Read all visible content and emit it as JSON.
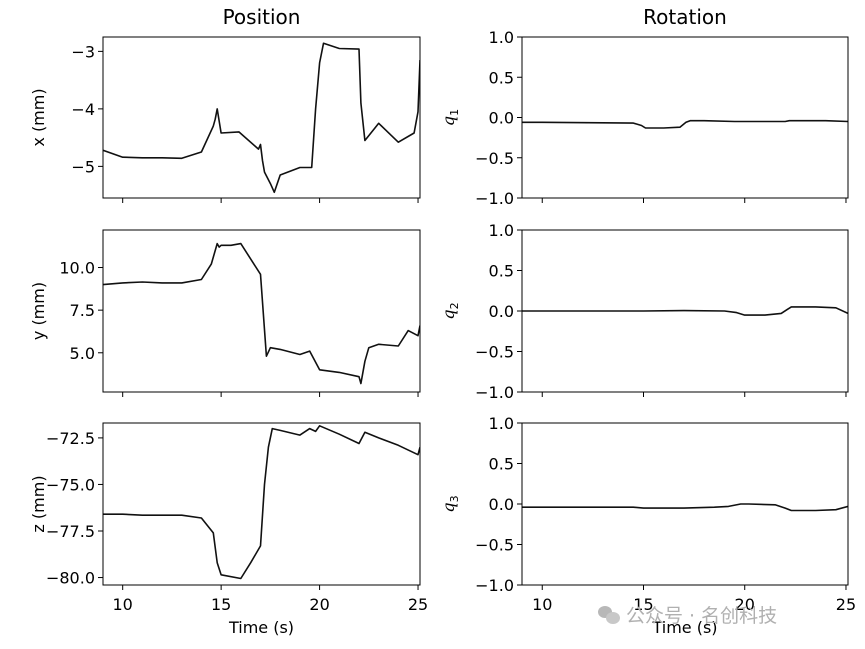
{
  "chart_data": [
    {
      "type": "line",
      "panel": "x",
      "column_title": "Position",
      "ylabel": "x (mm)",
      "xlabel": "",
      "xlim": [
        9,
        25.1
      ],
      "ylim": [
        -5.55,
        -2.75
      ],
      "xticks": [
        10,
        15,
        20,
        25
      ],
      "yticks": [
        -5,
        -4,
        -3
      ],
      "ytick_labels": [
        "−5",
        "−4",
        "−3"
      ],
      "x": [
        9,
        10,
        11,
        12,
        13,
        14,
        14.6,
        14.7,
        14.8,
        15.0,
        15.9,
        16.9,
        17.0,
        17.1,
        17.2,
        17.5,
        17.7,
        18.0,
        19.0,
        19.6,
        19.8,
        20.0,
        20.2,
        21.0,
        22.0,
        22.1,
        22.3,
        23.0,
        24.0,
        24.8,
        25.0,
        25.1
      ],
      "y": [
        -4.72,
        -4.84,
        -4.85,
        -4.85,
        -4.86,
        -4.75,
        -4.3,
        -4.18,
        -4.0,
        -4.42,
        -4.4,
        -4.7,
        -4.62,
        -4.9,
        -5.1,
        -5.3,
        -5.45,
        -5.15,
        -5.02,
        -5.02,
        -4.0,
        -3.2,
        -2.86,
        -2.95,
        -2.96,
        -3.9,
        -4.55,
        -4.25,
        -4.58,
        -4.42,
        -4.05,
        -3.15
      ]
    },
    {
      "type": "line",
      "panel": "y",
      "ylabel": "y (mm)",
      "xlabel": "",
      "xlim": [
        9,
        25.1
      ],
      "ylim": [
        2.7,
        12.2
      ],
      "xticks": [
        10,
        15,
        20,
        25
      ],
      "yticks": [
        5.0,
        7.5,
        10.0
      ],
      "ytick_labels": [
        "5.0",
        "7.5",
        "10.0"
      ],
      "x": [
        9,
        10,
        11,
        12,
        13,
        14,
        14.5,
        14.8,
        14.9,
        15.0,
        15.5,
        16.0,
        17.0,
        17.3,
        17.5,
        18.0,
        19.0,
        19.5,
        20.0,
        21.0,
        22.0,
        22.1,
        22.3,
        22.5,
        23.0,
        24.0,
        24.5,
        25.0,
        25.1
      ],
      "y": [
        9.0,
        9.1,
        9.15,
        9.1,
        9.1,
        9.3,
        10.2,
        11.4,
        11.2,
        11.3,
        11.3,
        11.4,
        9.6,
        4.8,
        5.3,
        5.2,
        4.9,
        5.1,
        4.0,
        3.85,
        3.6,
        3.2,
        4.5,
        5.3,
        5.5,
        5.4,
        6.3,
        6.0,
        6.6
      ]
    },
    {
      "type": "line",
      "panel": "z",
      "ylabel": "z (mm)",
      "xlabel": "Time (s)",
      "xlim": [
        9,
        25.1
      ],
      "ylim": [
        -80.4,
        -71.7
      ],
      "xticks": [
        10,
        15,
        20,
        25
      ],
      "yticks": [
        -80.0,
        -77.5,
        -75.0,
        -72.5
      ],
      "ytick_labels": [
        "−80.0",
        "−77.5",
        "−75.0",
        "−72.5"
      ],
      "xtick_labels": [
        "10",
        "15",
        "20",
        "25"
      ],
      "x": [
        9,
        10,
        11,
        12,
        13,
        14,
        14.6,
        14.8,
        15.0,
        16.0,
        16.5,
        17.0,
        17.2,
        17.4,
        17.6,
        18.0,
        19.0,
        19.5,
        19.8,
        20.0,
        21.0,
        22.0,
        22.3,
        23.0,
        24.0,
        25.0,
        25.1
      ],
      "y": [
        -76.6,
        -76.6,
        -76.65,
        -76.65,
        -76.65,
        -76.8,
        -77.6,
        -79.2,
        -79.85,
        -80.05,
        -79.2,
        -78.3,
        -75.0,
        -73.0,
        -72.0,
        -72.1,
        -72.35,
        -72.0,
        -72.15,
        -71.85,
        -72.3,
        -72.8,
        -72.2,
        -72.5,
        -72.9,
        -73.4,
        -73.0
      ]
    },
    {
      "type": "line",
      "panel": "q1",
      "column_title": "Rotation",
      "ylabel": "q",
      "ylabel_subscript": "1",
      "xlabel": "",
      "xlim": [
        9,
        25.1
      ],
      "ylim": [
        -1.0,
        1.0
      ],
      "xticks": [
        10,
        15,
        20,
        25
      ],
      "yticks": [
        -1.0,
        -0.5,
        0.0,
        0.5,
        1.0
      ],
      "ytick_labels": [
        "−1.0",
        "−0.5",
        "0.0",
        "0.5",
        "1.0"
      ],
      "x": [
        9,
        10,
        14.5,
        14.9,
        15.1,
        16.0,
        16.8,
        17.1,
        17.3,
        18.0,
        19.5,
        20.0,
        22.0,
        22.2,
        24.0,
        25.1
      ],
      "y": [
        -0.06,
        -0.06,
        -0.07,
        -0.1,
        -0.13,
        -0.13,
        -0.12,
        -0.06,
        -0.04,
        -0.04,
        -0.05,
        -0.05,
        -0.05,
        -0.04,
        -0.04,
        -0.05
      ]
    },
    {
      "type": "line",
      "panel": "q2",
      "ylabel": "q",
      "ylabel_subscript": "2",
      "xlabel": "",
      "xlim": [
        9,
        25.1
      ],
      "ylim": [
        -1.0,
        1.0
      ],
      "xticks": [
        10,
        15,
        20,
        25
      ],
      "yticks": [
        -1.0,
        -0.5,
        0.0,
        0.5,
        1.0
      ],
      "ytick_labels": [
        "−1.0",
        "−0.5",
        "0.0",
        "0.5",
        "1.0"
      ],
      "x": [
        9,
        12,
        15,
        17,
        19,
        19.6,
        20.0,
        21.0,
        21.8,
        22.1,
        22.3,
        23.5,
        24.5,
        25.1
      ],
      "y": [
        0.0,
        0.0,
        0.0,
        0.005,
        0.0,
        -0.02,
        -0.05,
        -0.05,
        -0.03,
        0.02,
        0.05,
        0.05,
        0.04,
        -0.03
      ]
    },
    {
      "type": "line",
      "panel": "q3",
      "ylabel": "q",
      "ylabel_subscript": "3",
      "xlabel": "Time (s)",
      "xlim": [
        9,
        25.1
      ],
      "ylim": [
        -1.0,
        1.0
      ],
      "xticks": [
        10,
        15,
        20,
        25
      ],
      "yticks": [
        -1.0,
        -0.5,
        0.0,
        0.5,
        1.0
      ],
      "ytick_labels": [
        "−1.0",
        "−0.5",
        "0.0",
        "0.5",
        "1.0"
      ],
      "xtick_labels": [
        "10",
        "15",
        "20",
        "25"
      ],
      "x": [
        9,
        12,
        14.5,
        15.0,
        17.0,
        18.5,
        19.2,
        19.8,
        20.2,
        21.5,
        22.0,
        22.3,
        23.5,
        24.5,
        25.1
      ],
      "y": [
        -0.04,
        -0.04,
        -0.04,
        -0.05,
        -0.05,
        -0.04,
        -0.03,
        0.0,
        0.0,
        -0.01,
        -0.05,
        -0.08,
        -0.08,
        -0.07,
        -0.03
      ]
    }
  ],
  "watermark": {
    "text": "公众号 · 名创科技",
    "icon": "wechat-icon",
    "color": "#b0b0b0"
  },
  "colors": {
    "line": "#111111",
    "axes": "#000000",
    "background": "#ffffff"
  }
}
